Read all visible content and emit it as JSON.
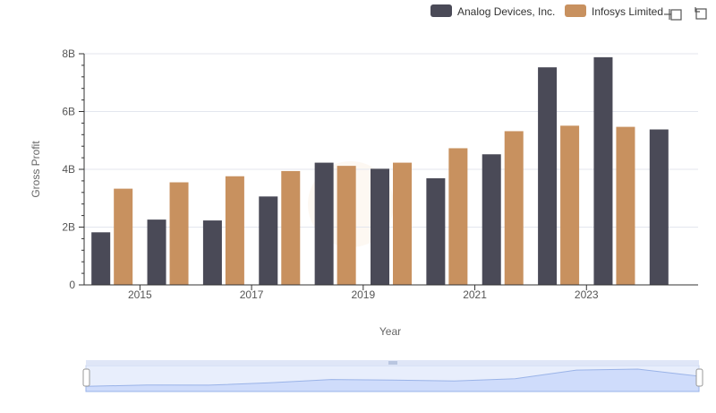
{
  "colors": {
    "analog": "#4a4a57",
    "infosys": "#c8915f",
    "grid": "#e3e6ee",
    "axis": "#333333",
    "navigator_fill": "#dbe6ff",
    "navigator_line": "#9ab3e8",
    "navigator_bg": "#eef2fb"
  },
  "toolbar": {
    "zoom_icon": "zoom-select-icon",
    "reset_icon": "reset-zoom-icon"
  },
  "chart_data": {
    "type": "bar",
    "title": "",
    "xlabel": "Year",
    "ylabel": "Gross Profit",
    "categories": [
      "2014",
      "2015",
      "2016",
      "2017",
      "2018",
      "2019",
      "2020",
      "2021",
      "2022",
      "2023",
      "2024"
    ],
    "x_tick_labels": [
      "2015",
      "2017",
      "2019",
      "2021",
      "2023"
    ],
    "y_tick_labels": [
      "0",
      "2B",
      "4B",
      "6B",
      "8B"
    ],
    "ylim": [
      0,
      8000000000
    ],
    "grid": true,
    "legend_position": "top-right",
    "series": [
      {
        "name": "Analog Devices, Inc.",
        "color_key": "analog",
        "values": [
          1820000000,
          2260000000,
          2230000000,
          3060000000,
          4230000000,
          4020000000,
          3690000000,
          4520000000,
          7530000000,
          7880000000,
          5380000000
        ]
      },
      {
        "name": "Infosys Limited",
        "color_key": "infosys",
        "values": [
          3330000000,
          3550000000,
          3760000000,
          3940000000,
          4120000000,
          4230000000,
          4730000000,
          5320000000,
          5510000000,
          5470000000,
          null
        ]
      }
    ]
  }
}
